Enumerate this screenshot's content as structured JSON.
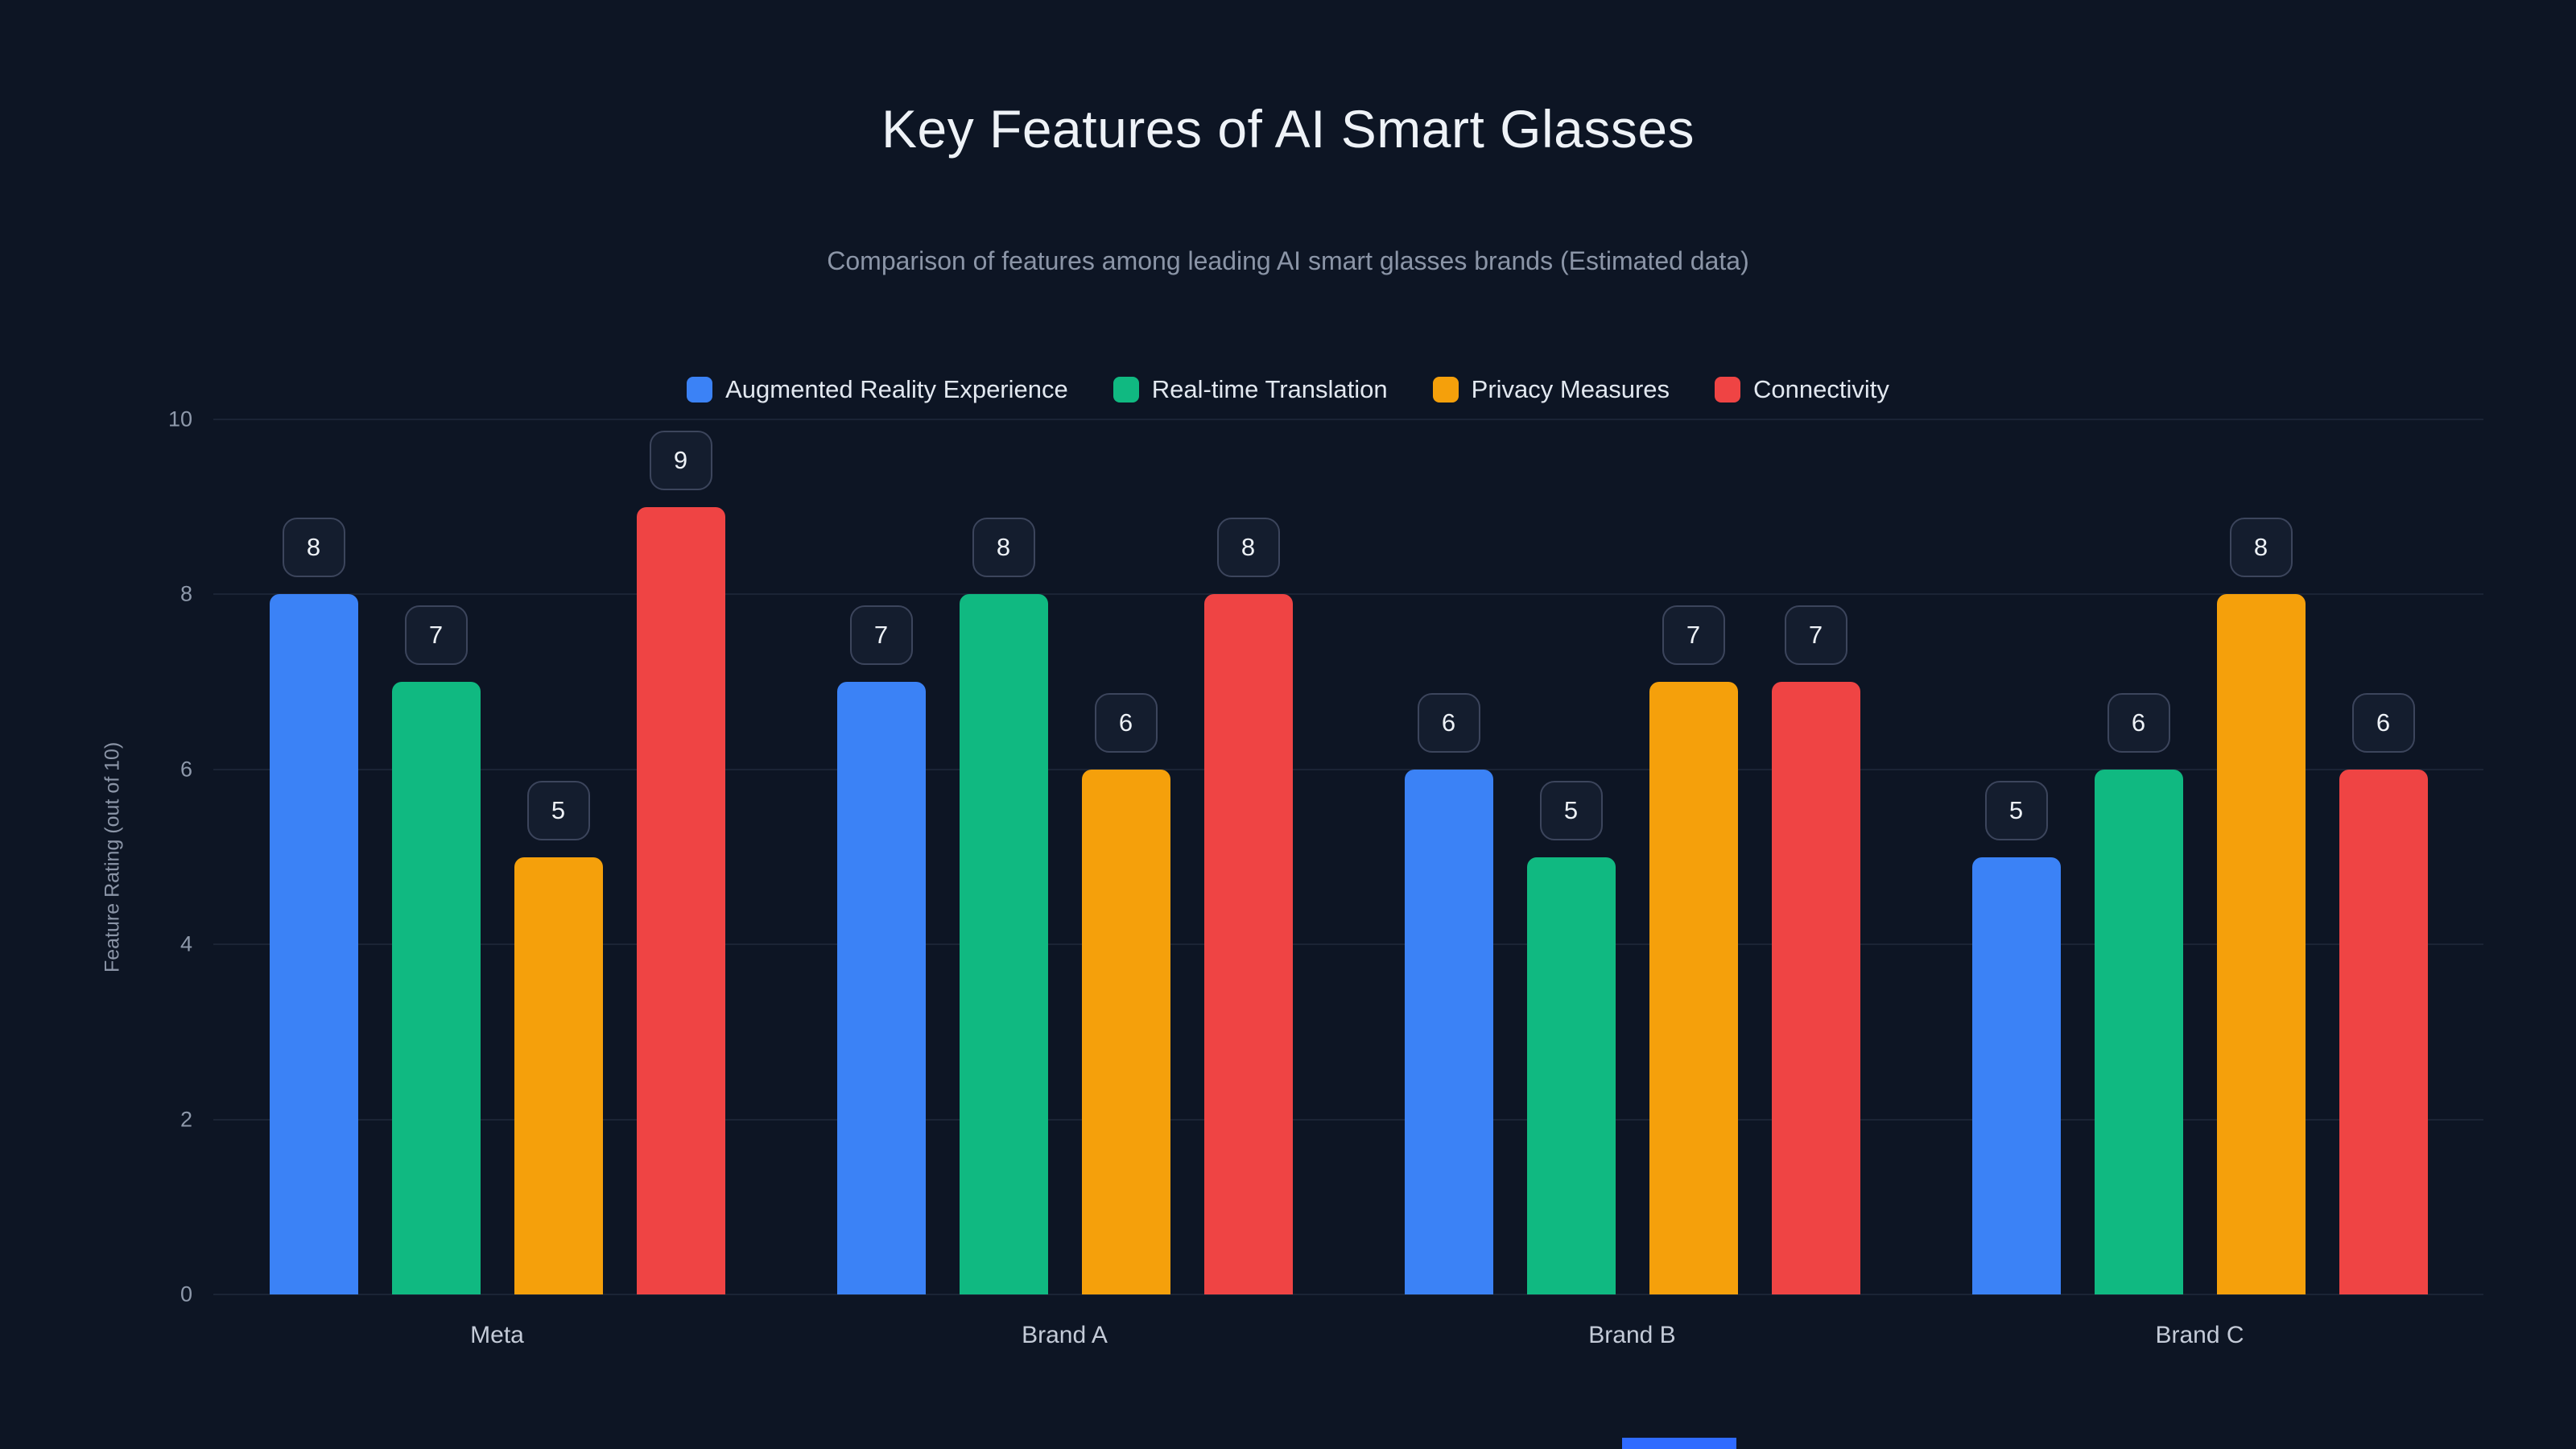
{
  "chart_data": {
    "type": "bar",
    "title": "Key Features of AI Smart Glasses",
    "subtitle": "Comparison of features among leading AI smart glasses brands (Estimated data)",
    "ylabel": "Feature Rating (out of 10)",
    "xlabel": "",
    "ylim": [
      0,
      10
    ],
    "yticks": [
      0,
      2,
      4,
      6,
      8,
      10
    ],
    "grid": true,
    "legend_position": "top",
    "categories": [
      "Meta",
      "Brand A",
      "Brand B",
      "Brand C"
    ],
    "series": [
      {
        "name": "Augmented Reality Experience",
        "color": "#3b82f6",
        "values": [
          8,
          7,
          6,
          5
        ]
      },
      {
        "name": "Real-time Translation",
        "color": "#10b981",
        "values": [
          7,
          8,
          5,
          6
        ]
      },
      {
        "name": "Privacy Measures",
        "color": "#f5a00b",
        "values": [
          5,
          6,
          7,
          8
        ]
      },
      {
        "name": "Connectivity",
        "color": "#ef4444",
        "values": [
          9,
          8,
          7,
          6
        ]
      }
    ]
  },
  "colors": {
    "background": "#0d1524",
    "gridline": "#1b2435",
    "badge_background": "#141d2e",
    "badge_border": "#3c455c",
    "title_text": "#eef2f7",
    "subtitle_text": "#8b95a7",
    "axis_text": "#8e99ab",
    "category_text": "#c4cbd8",
    "bottom_strip": "#2f6bff"
  }
}
